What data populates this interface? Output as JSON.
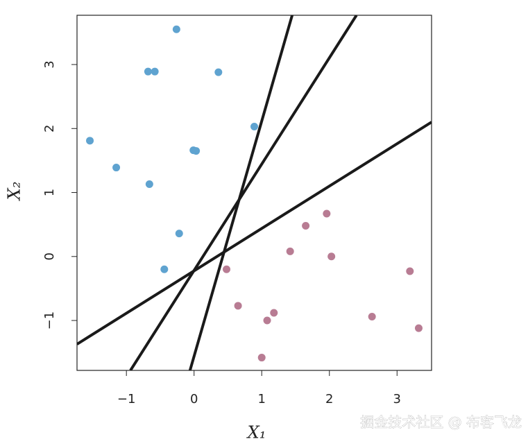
{
  "chart_data": {
    "type": "scatter",
    "x_label": "X₁",
    "y_label": "X₂",
    "xlim": [
      -1.73,
      3.51
    ],
    "ylim": [
      -1.78,
      3.77
    ],
    "xticks": [
      {
        "value": -1,
        "label": "−1"
      },
      0,
      1,
      2,
      3
    ],
    "yticks": [
      {
        "value": -1,
        "label": "−1"
      },
      0,
      1,
      2,
      3
    ],
    "series": [
      {
        "color": "#5fa3d0",
        "x": [
          -0.26,
          -0.68,
          -0.58,
          0.36,
          0.89,
          -1.54,
          -0.01,
          0.03,
          -1.15,
          -0.66,
          -0.22,
          -0.44
        ],
        "values": [
          3.55,
          2.89,
          2.89,
          2.88,
          2.03,
          1.81,
          1.66,
          1.65,
          1.39,
          1.13,
          0.36,
          -0.2
        ]
      },
      {
        "color": "#b87c93",
        "x": [
          1.96,
          1.65,
          1.42,
          2.03,
          0.48,
          3.19,
          0.65,
          1.18,
          1.08,
          2.63,
          3.32,
          1.0
        ],
        "values": [
          0.67,
          0.48,
          0.08,
          0.0,
          -0.2,
          -0.23,
          -0.77,
          -0.88,
          -1.0,
          -0.94,
          -1.12,
          -1.58
        ]
      }
    ],
    "lines": [
      {
        "color": "#1a1a1a",
        "x": [
          -0.06,
          1.45
        ],
        "values": [
          -1.78,
          3.77
        ]
      },
      {
        "color": "#1a1a1a",
        "x": [
          -0.94,
          2.4
        ],
        "values": [
          -1.78,
          3.77
        ]
      },
      {
        "color": "#1a1a1a",
        "x": [
          -1.73,
          3.51
        ],
        "values": [
          -1.37,
          2.1
        ]
      }
    ]
  },
  "watermark": "掘金技术社区 @ 布客飞龙"
}
